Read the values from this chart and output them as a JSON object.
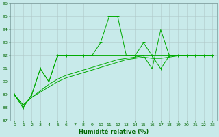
{
  "x": [
    0,
    1,
    2,
    3,
    4,
    5,
    6,
    7,
    8,
    9,
    10,
    11,
    12,
    13,
    14,
    15,
    16,
    17,
    18,
    19,
    20,
    21,
    22,
    23
  ],
  "line1": [
    89,
    88,
    89,
    91,
    90,
    92,
    92,
    92,
    92,
    92,
    93,
    95,
    95,
    92,
    92,
    93,
    92,
    91,
    92,
    92,
    92,
    92,
    92,
    92
  ],
  "line2": [
    89,
    88,
    89,
    91,
    90,
    92,
    92,
    92,
    92,
    92,
    92,
    92,
    92,
    92,
    92,
    92,
    91,
    94,
    92,
    92,
    92,
    92,
    92,
    92
  ],
  "line3": [
    89,
    88.2,
    88.8,
    89.2,
    89.6,
    90.0,
    90.3,
    90.5,
    90.7,
    90.9,
    91.1,
    91.3,
    91.5,
    91.7,
    91.8,
    91.9,
    91.8,
    91.8,
    91.9,
    92.0,
    92.0,
    92.0,
    92.0,
    92.0
  ],
  "line4": [
    89,
    88.2,
    88.8,
    89.3,
    89.8,
    90.2,
    90.5,
    90.7,
    90.9,
    91.1,
    91.3,
    91.5,
    91.7,
    91.8,
    91.9,
    92.0,
    92.0,
    92.0,
    92.0,
    92.0,
    92.0,
    92.0,
    92.0,
    92.0
  ],
  "bg_color": "#c8eaea",
  "grid_major_color": "#b0c8c8",
  "grid_minor_color": "#c0dcdc",
  "line_color": "#00aa00",
  "xlabel": "Humidité relative (%)",
  "ylim": [
    87,
    96
  ],
  "xlim": [
    -0.5,
    23.5
  ],
  "yticks": [
    87,
    88,
    89,
    90,
    91,
    92,
    93,
    94,
    95,
    96
  ],
  "xticks": [
    0,
    1,
    2,
    3,
    4,
    5,
    6,
    7,
    8,
    9,
    10,
    11,
    12,
    13,
    14,
    15,
    16,
    17,
    18,
    19,
    20,
    21,
    22,
    23
  ],
  "tick_fontsize": 4.5,
  "xlabel_fontsize": 6.0
}
